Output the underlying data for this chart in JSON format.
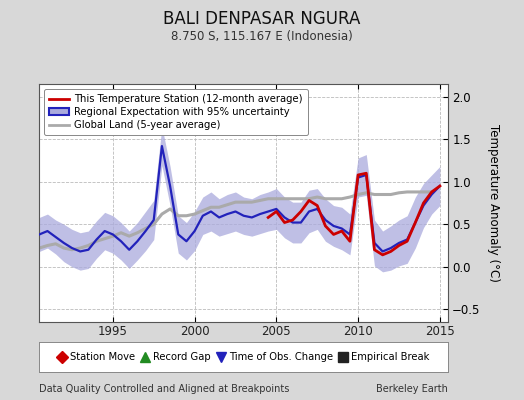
{
  "title": "BALI DENPASAR NGURA",
  "subtitle": "8.750 S, 115.167 E (Indonesia)",
  "ylabel": "Temperature Anomaly (°C)",
  "xlabel_left": "Data Quality Controlled and Aligned at Breakpoints",
  "xlabel_right": "Berkeley Earth",
  "xlim": [
    1990.5,
    2015.5
  ],
  "ylim": [
    -0.65,
    2.15
  ],
  "yticks": [
    -0.5,
    0.0,
    0.5,
    1.0,
    1.5,
    2.0
  ],
  "xticks": [
    1995,
    2000,
    2005,
    2010,
    2015
  ],
  "bg_color": "#d8d8d8",
  "plot_bg_color": "#ffffff",
  "regional_color": "#2222bb",
  "regional_fill_color": "#aaaadd",
  "station_color": "#cc0000",
  "global_color": "#aaaaaa",
  "grid_color": "#cccccc",
  "time_series": {
    "years_regional": [
      1990.5,
      1991.0,
      1991.5,
      1992.0,
      1992.5,
      1993.0,
      1993.5,
      1994.0,
      1994.5,
      1995.0,
      1995.5,
      1996.0,
      1996.5,
      1997.0,
      1997.5,
      1998.0,
      1998.5,
      1999.0,
      1999.5,
      2000.0,
      2000.5,
      2001.0,
      2001.5,
      2002.0,
      2002.5,
      2003.0,
      2003.5,
      2004.0,
      2004.5,
      2005.0,
      2005.5,
      2006.0,
      2006.5,
      2007.0,
      2007.5,
      2008.0,
      2008.5,
      2009.0,
      2009.5,
      2010.0,
      2010.5,
      2011.0,
      2011.5,
      2012.0,
      2012.5,
      2013.0,
      2013.5,
      2014.0,
      2014.5,
      2015.0
    ],
    "regional_mean": [
      0.38,
      0.42,
      0.35,
      0.28,
      0.22,
      0.18,
      0.2,
      0.32,
      0.42,
      0.38,
      0.3,
      0.2,
      0.3,
      0.42,
      0.55,
      1.42,
      0.95,
      0.38,
      0.3,
      0.42,
      0.6,
      0.65,
      0.58,
      0.62,
      0.65,
      0.6,
      0.58,
      0.62,
      0.65,
      0.68,
      0.58,
      0.52,
      0.52,
      0.65,
      0.68,
      0.55,
      0.48,
      0.45,
      0.38,
      1.05,
      1.08,
      0.28,
      0.18,
      0.22,
      0.28,
      0.32,
      0.52,
      0.72,
      0.85,
      0.95
    ],
    "regional_upper": [
      0.58,
      0.62,
      0.55,
      0.5,
      0.44,
      0.4,
      0.42,
      0.54,
      0.64,
      0.6,
      0.52,
      0.42,
      0.52,
      0.65,
      0.78,
      1.65,
      1.18,
      0.6,
      0.52,
      0.65,
      0.82,
      0.88,
      0.8,
      0.85,
      0.88,
      0.82,
      0.8,
      0.85,
      0.88,
      0.92,
      0.82,
      0.76,
      0.76,
      0.9,
      0.92,
      0.8,
      0.72,
      0.7,
      0.62,
      1.28,
      1.32,
      0.55,
      0.42,
      0.48,
      0.55,
      0.6,
      0.82,
      0.98,
      1.08,
      1.18
    ],
    "regional_lower": [
      0.18,
      0.22,
      0.15,
      0.06,
      0.0,
      -0.04,
      -0.02,
      0.1,
      0.2,
      0.16,
      0.08,
      -0.02,
      0.08,
      0.19,
      0.32,
      1.19,
      0.72,
      0.16,
      0.08,
      0.19,
      0.38,
      0.42,
      0.36,
      0.39,
      0.42,
      0.38,
      0.36,
      0.39,
      0.42,
      0.44,
      0.34,
      0.28,
      0.28,
      0.4,
      0.44,
      0.3,
      0.24,
      0.2,
      0.14,
      0.82,
      0.84,
      0.01,
      -0.06,
      -0.04,
      0.01,
      0.04,
      0.22,
      0.46,
      0.62,
      0.72
    ],
    "years_station": [
      2004.5,
      2005.0,
      2005.5,
      2006.0,
      2006.5,
      2007.0,
      2007.5,
      2008.0,
      2008.5,
      2009.0,
      2009.5,
      2010.0,
      2010.5,
      2011.0,
      2011.5,
      2012.0,
      2012.5,
      2013.0,
      2013.5,
      2014.0,
      2014.5,
      2015.0
    ],
    "station": [
      0.58,
      0.65,
      0.52,
      0.55,
      0.65,
      0.78,
      0.72,
      0.48,
      0.38,
      0.42,
      0.3,
      1.08,
      1.1,
      0.2,
      0.14,
      0.18,
      0.25,
      0.3,
      0.52,
      0.75,
      0.88,
      0.95
    ],
    "years_global": [
      1990.5,
      1991.0,
      1991.5,
      1992.0,
      1992.5,
      1993.0,
      1993.5,
      1994.0,
      1994.5,
      1995.0,
      1995.5,
      1996.0,
      1996.5,
      1997.0,
      1997.5,
      1998.0,
      1998.5,
      1999.0,
      1999.5,
      2000.0,
      2000.5,
      2001.0,
      2001.5,
      2002.0,
      2002.5,
      2003.0,
      2003.5,
      2004.0,
      2004.5,
      2005.0,
      2005.5,
      2006.0,
      2006.5,
      2007.0,
      2007.5,
      2008.0,
      2008.5,
      2009.0,
      2009.5,
      2010.0,
      2010.5,
      2011.0,
      2011.5,
      2012.0,
      2012.5,
      2013.0,
      2013.5,
      2014.0,
      2014.5
    ],
    "global": [
      0.22,
      0.25,
      0.27,
      0.22,
      0.2,
      0.22,
      0.25,
      0.3,
      0.33,
      0.36,
      0.4,
      0.36,
      0.4,
      0.45,
      0.5,
      0.62,
      0.68,
      0.6,
      0.6,
      0.62,
      0.66,
      0.7,
      0.7,
      0.73,
      0.76,
      0.76,
      0.76,
      0.78,
      0.8,
      0.8,
      0.8,
      0.8,
      0.8,
      0.8,
      0.82,
      0.8,
      0.8,
      0.8,
      0.82,
      0.85,
      0.87,
      0.85,
      0.85,
      0.85,
      0.87,
      0.88,
      0.88,
      0.88,
      0.88
    ]
  },
  "legend1_entries": [
    {
      "label": "This Temperature Station (12-month average)",
      "color": "#cc0000",
      "lw": 2
    },
    {
      "label": "Regional Expectation with 95% uncertainty",
      "color": "#2222bb",
      "fill": "#aaaadd",
      "lw": 2
    },
    {
      "label": "Global Land (5-year average)",
      "color": "#aaaaaa",
      "lw": 2
    }
  ],
  "legend2_entries": [
    {
      "label": "Station Move",
      "marker": "D",
      "color": "#cc0000"
    },
    {
      "label": "Record Gap",
      "marker": "^",
      "color": "#228B22"
    },
    {
      "label": "Time of Obs. Change",
      "marker": "v",
      "color": "#2222bb"
    },
    {
      "label": "Empirical Break",
      "marker": "s",
      "color": "#222222"
    }
  ]
}
